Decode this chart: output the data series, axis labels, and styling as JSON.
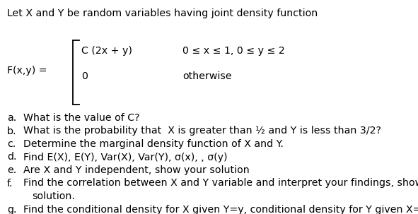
{
  "title_line": "Let X and Y be random variables having joint density function",
  "fx_label": "F(x,y) =",
  "case1_expr": "C (2x + y)",
  "case1_cond": "0 ≤ x ≤ 1, 0 ≤ y ≤ 2",
  "case2_expr": "0",
  "case2_cond": "otherwise",
  "questions": [
    {
      "label": "a.",
      "text": "What is the value of C?",
      "indent": false
    },
    {
      "label": "b.",
      "text": "What is the probability that  X is greater than ½ and Y is less than 3/2?",
      "indent": false
    },
    {
      "label": "c.",
      "text": "Determine the marginal density function of X and Y.",
      "indent": false
    },
    {
      "label": "d.",
      "text": "Find E(X), E(Y), Var(X), Var(Y), σ(x), , σ(y)",
      "indent": false
    },
    {
      "label": "e.",
      "text": "Are X and Y independent, show your solution",
      "indent": false
    },
    {
      "label": "f.",
      "text": "Find the correlation between X and Y variable and interpret your findings, show your",
      "indent": false
    },
    {
      "label": "",
      "text": "solution.",
      "indent": true
    },
    {
      "label": "g.",
      "text": "Find the conditional density for X given Y=y, conditional density for Y given X=x",
      "indent": false
    }
  ],
  "bg_color": "#ffffff",
  "text_color": "#000000",
  "font_size": 10.2,
  "bracket_color": "#000000"
}
